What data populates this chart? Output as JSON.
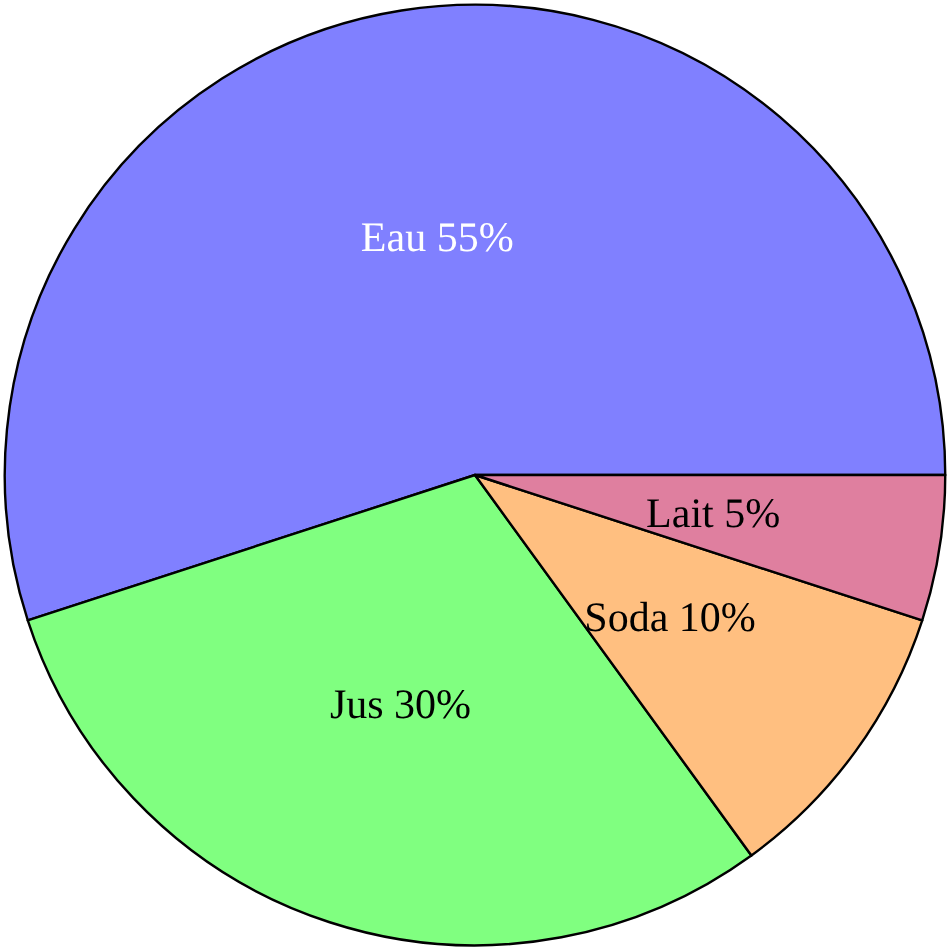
{
  "chart_data": {
    "type": "pie",
    "categories": [
      "Eau",
      "Jus",
      "Soda",
      "Lait"
    ],
    "values": [
      55,
      30,
      10,
      5
    ],
    "value_labels": [
      "55%",
      "30%",
      "10%",
      "5%"
    ],
    "colors": [
      "#8080ff",
      "#80ff80",
      "#ffbf80",
      "#df7f9f"
    ],
    "legend": false
  }
}
